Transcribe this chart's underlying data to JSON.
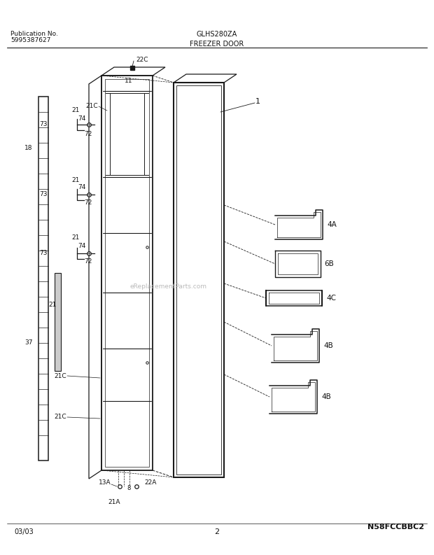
{
  "title_left": "Publication No.\n5995387627",
  "title_center": "GLHS280ZA",
  "title_section": "FREEZER DOOR",
  "footer_left": "03/03",
  "footer_center": "2",
  "footer_right": "N58FCCBBC2",
  "bg_color": "#ffffff",
  "line_color": "#1a1a1a",
  "text_color": "#111111",
  "watermark": "eReplacementParts.com"
}
